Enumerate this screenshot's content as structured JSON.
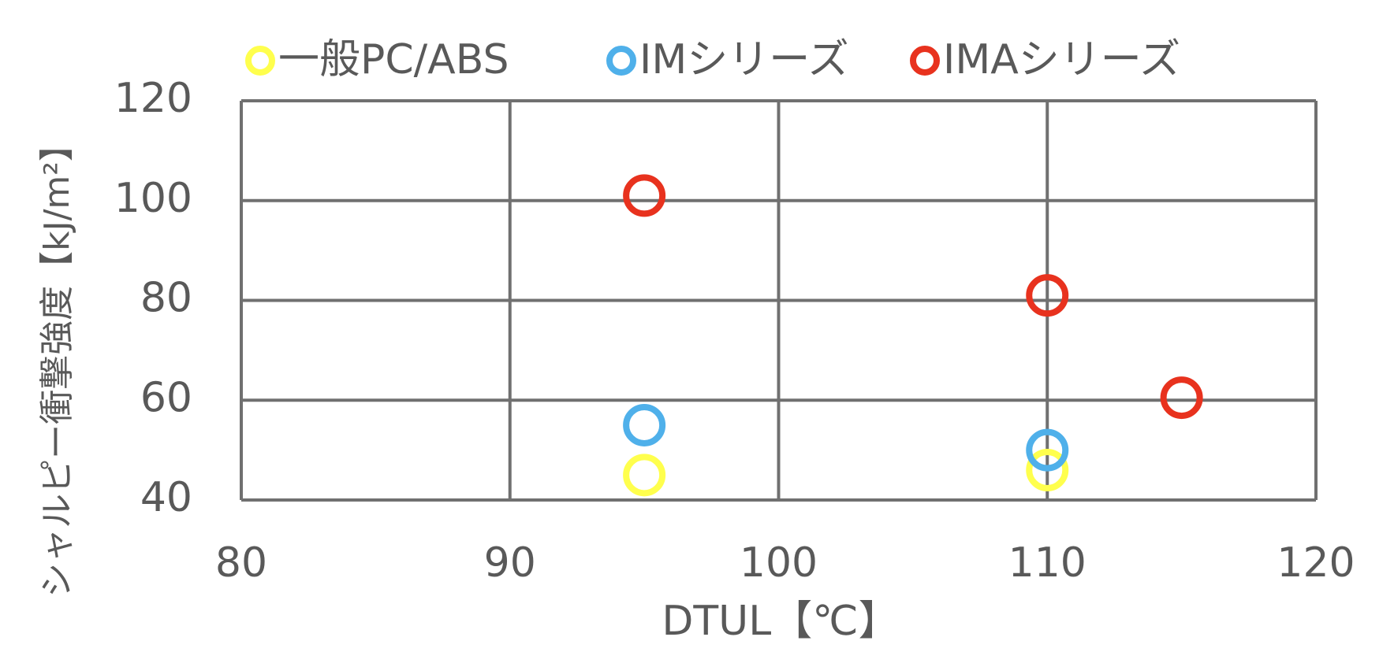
{
  "chart_data": {
    "type": "scatter",
    "x_label": "DTUL【℃】",
    "y_label": "シャルピー衝撃強度【kJ/m²】",
    "xlim": [
      80,
      120
    ],
    "xticks": [
      80,
      90,
      100,
      110,
      120
    ],
    "ylim": [
      40,
      120
    ],
    "yticks": [
      40,
      60,
      80,
      100,
      120
    ],
    "grid": true,
    "legend": "top",
    "series": [
      {
        "name": "一般PC/ABS",
        "color": "#ffff4d",
        "x": [
          95,
          110
        ],
        "values": [
          45,
          46
        ]
      },
      {
        "name": "IMシリーズ",
        "color": "#4fb0ea",
        "x": [
          95,
          110
        ],
        "values": [
          55,
          50
        ]
      },
      {
        "name": "IMAシリーズ",
        "color": "#e8321e",
        "x": [
          95,
          110,
          115
        ],
        "values": [
          101,
          81,
          60.5
        ]
      }
    ]
  }
}
